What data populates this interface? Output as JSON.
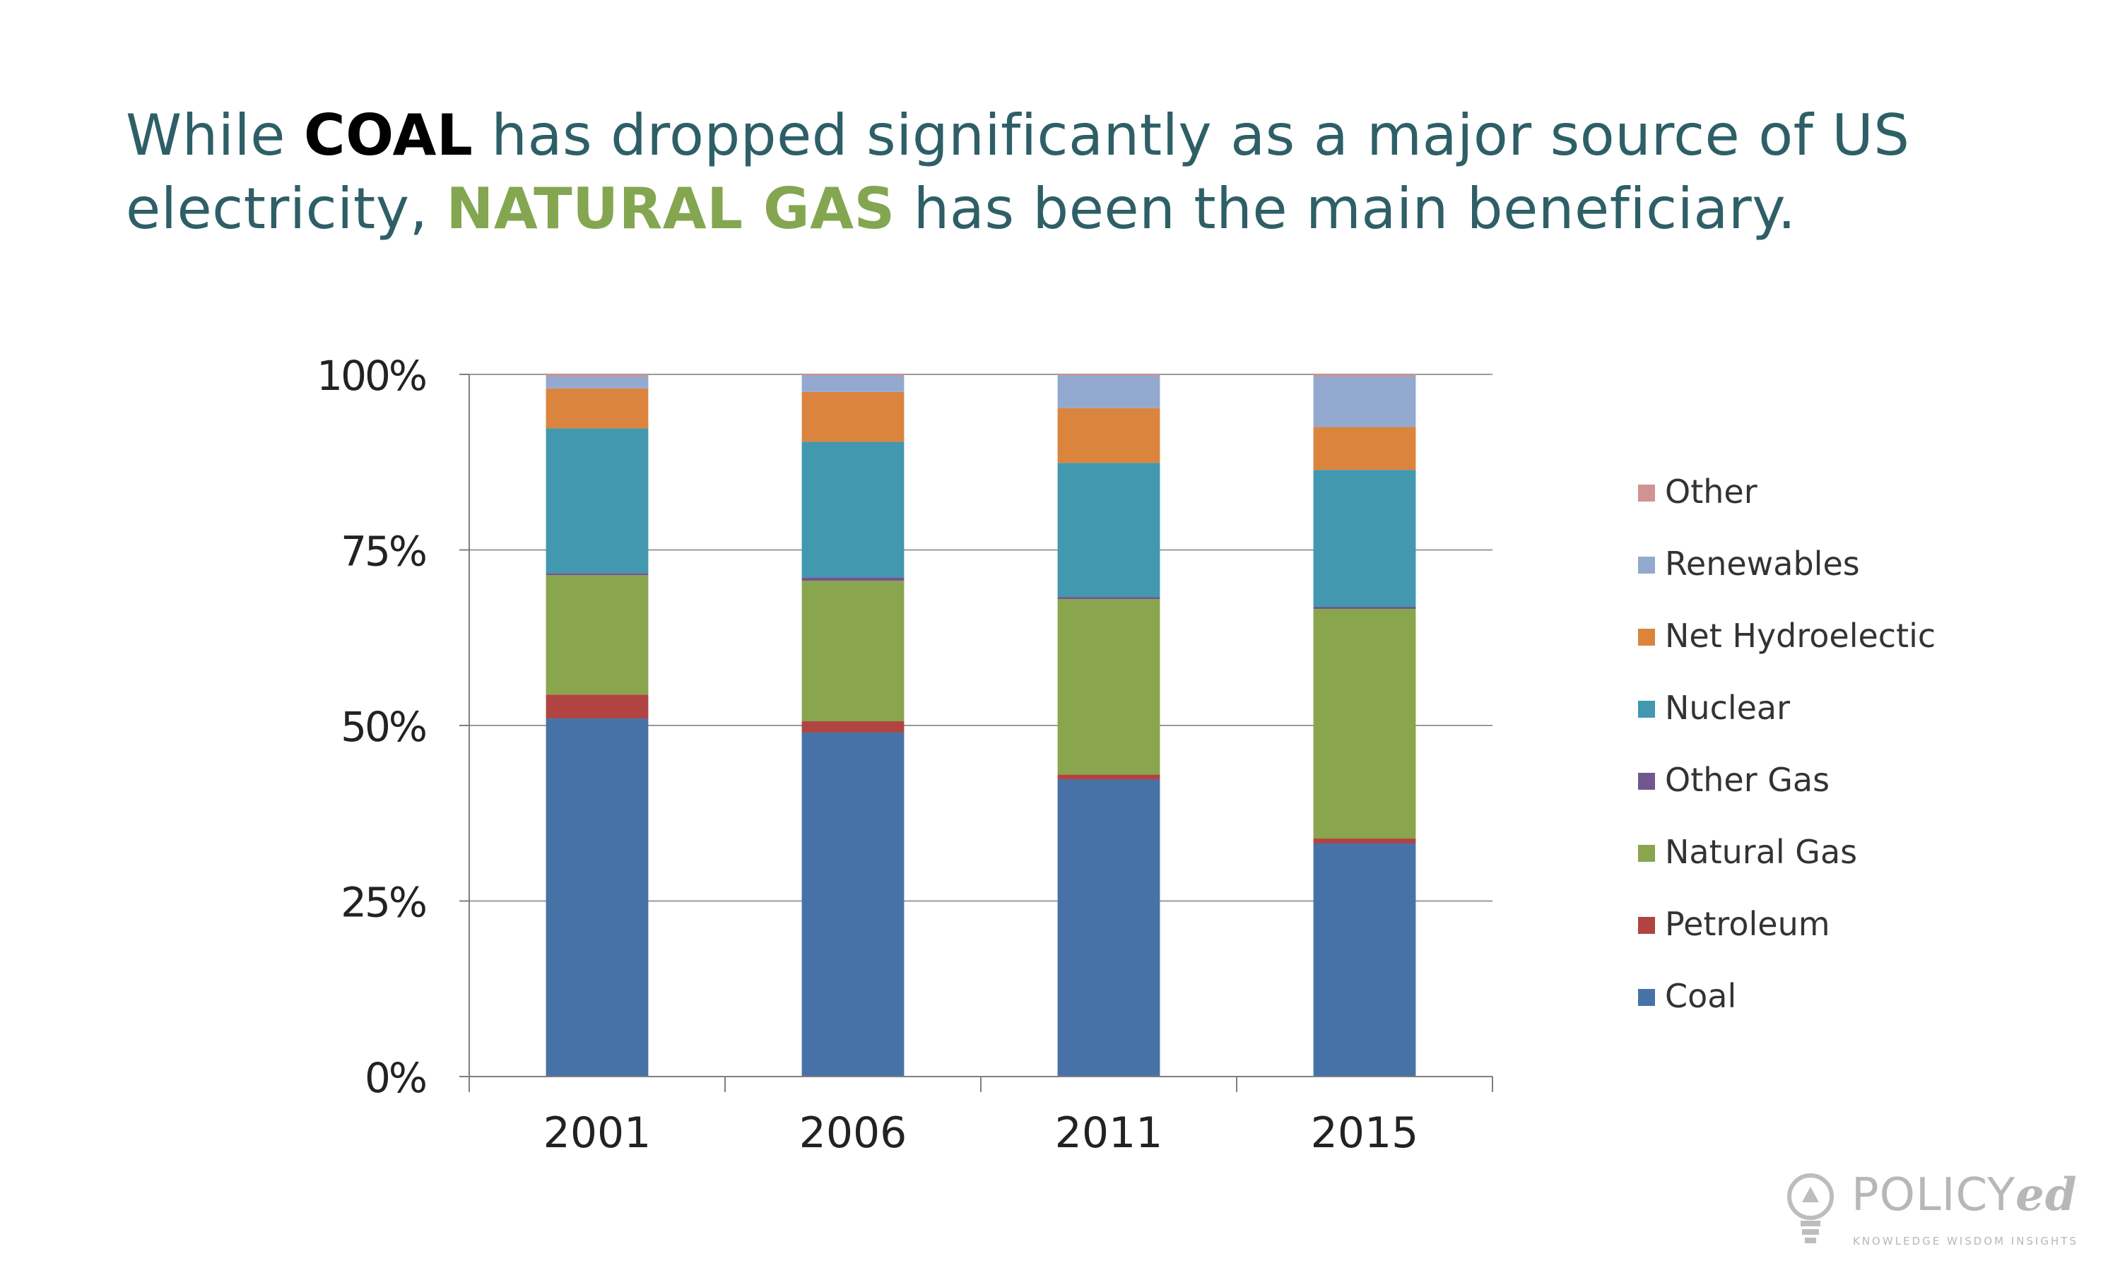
{
  "headline": {
    "part1": "While ",
    "coal": "COAL",
    "part2": " has dropped significantly as a major source of US electricity, ",
    "gas": "NATURAL GAS",
    "part3": " has been the main beneficiary."
  },
  "chart_data": {
    "type": "bar",
    "stacked": true,
    "title": "",
    "xlabel": "",
    "ylabel": "",
    "ylim": [
      0,
      100
    ],
    "y_ticks": [
      "0%",
      "25%",
      "50%",
      "75%",
      "100%"
    ],
    "y_tick_values": [
      0,
      25,
      50,
      75,
      100
    ],
    "grid": true,
    "legend_position": "right",
    "categories": [
      "2001",
      "2006",
      "2011",
      "2015"
    ],
    "series": [
      {
        "name": "Coal",
        "color": "#4672a8",
        "values": [
          51.0,
          49.0,
          42.3,
          33.2
        ]
      },
      {
        "name": "Petroleum",
        "color": "#b04442",
        "values": [
          3.4,
          1.6,
          0.7,
          0.7
        ]
      },
      {
        "name": "Natural Gas",
        "color": "#89a54e",
        "values": [
          17.0,
          20.0,
          25.0,
          32.7
        ]
      },
      {
        "name": "Other Gas",
        "color": "#71578f",
        "values": [
          0.3,
          0.5,
          0.3,
          0.3
        ]
      },
      {
        "name": "Nuclear",
        "color": "#4198af",
        "values": [
          20.6,
          19.3,
          19.1,
          19.5
        ]
      },
      {
        "name": "Net Hydroelectic",
        "color": "#db843d",
        "values": [
          5.7,
          7.1,
          7.8,
          6.1
        ]
      },
      {
        "name": "Renewables",
        "color": "#93a9cf",
        "values": [
          1.7,
          2.3,
          4.6,
          7.2
        ]
      },
      {
        "name": "Other",
        "color": "#d19392",
        "values": [
          0.3,
          0.2,
          0.2,
          0.3
        ]
      }
    ]
  },
  "logo": {
    "name_main": "POLICY",
    "name_ed": "ed",
    "tagline": "KNOWLEDGE WISDOM INSIGHTS"
  }
}
